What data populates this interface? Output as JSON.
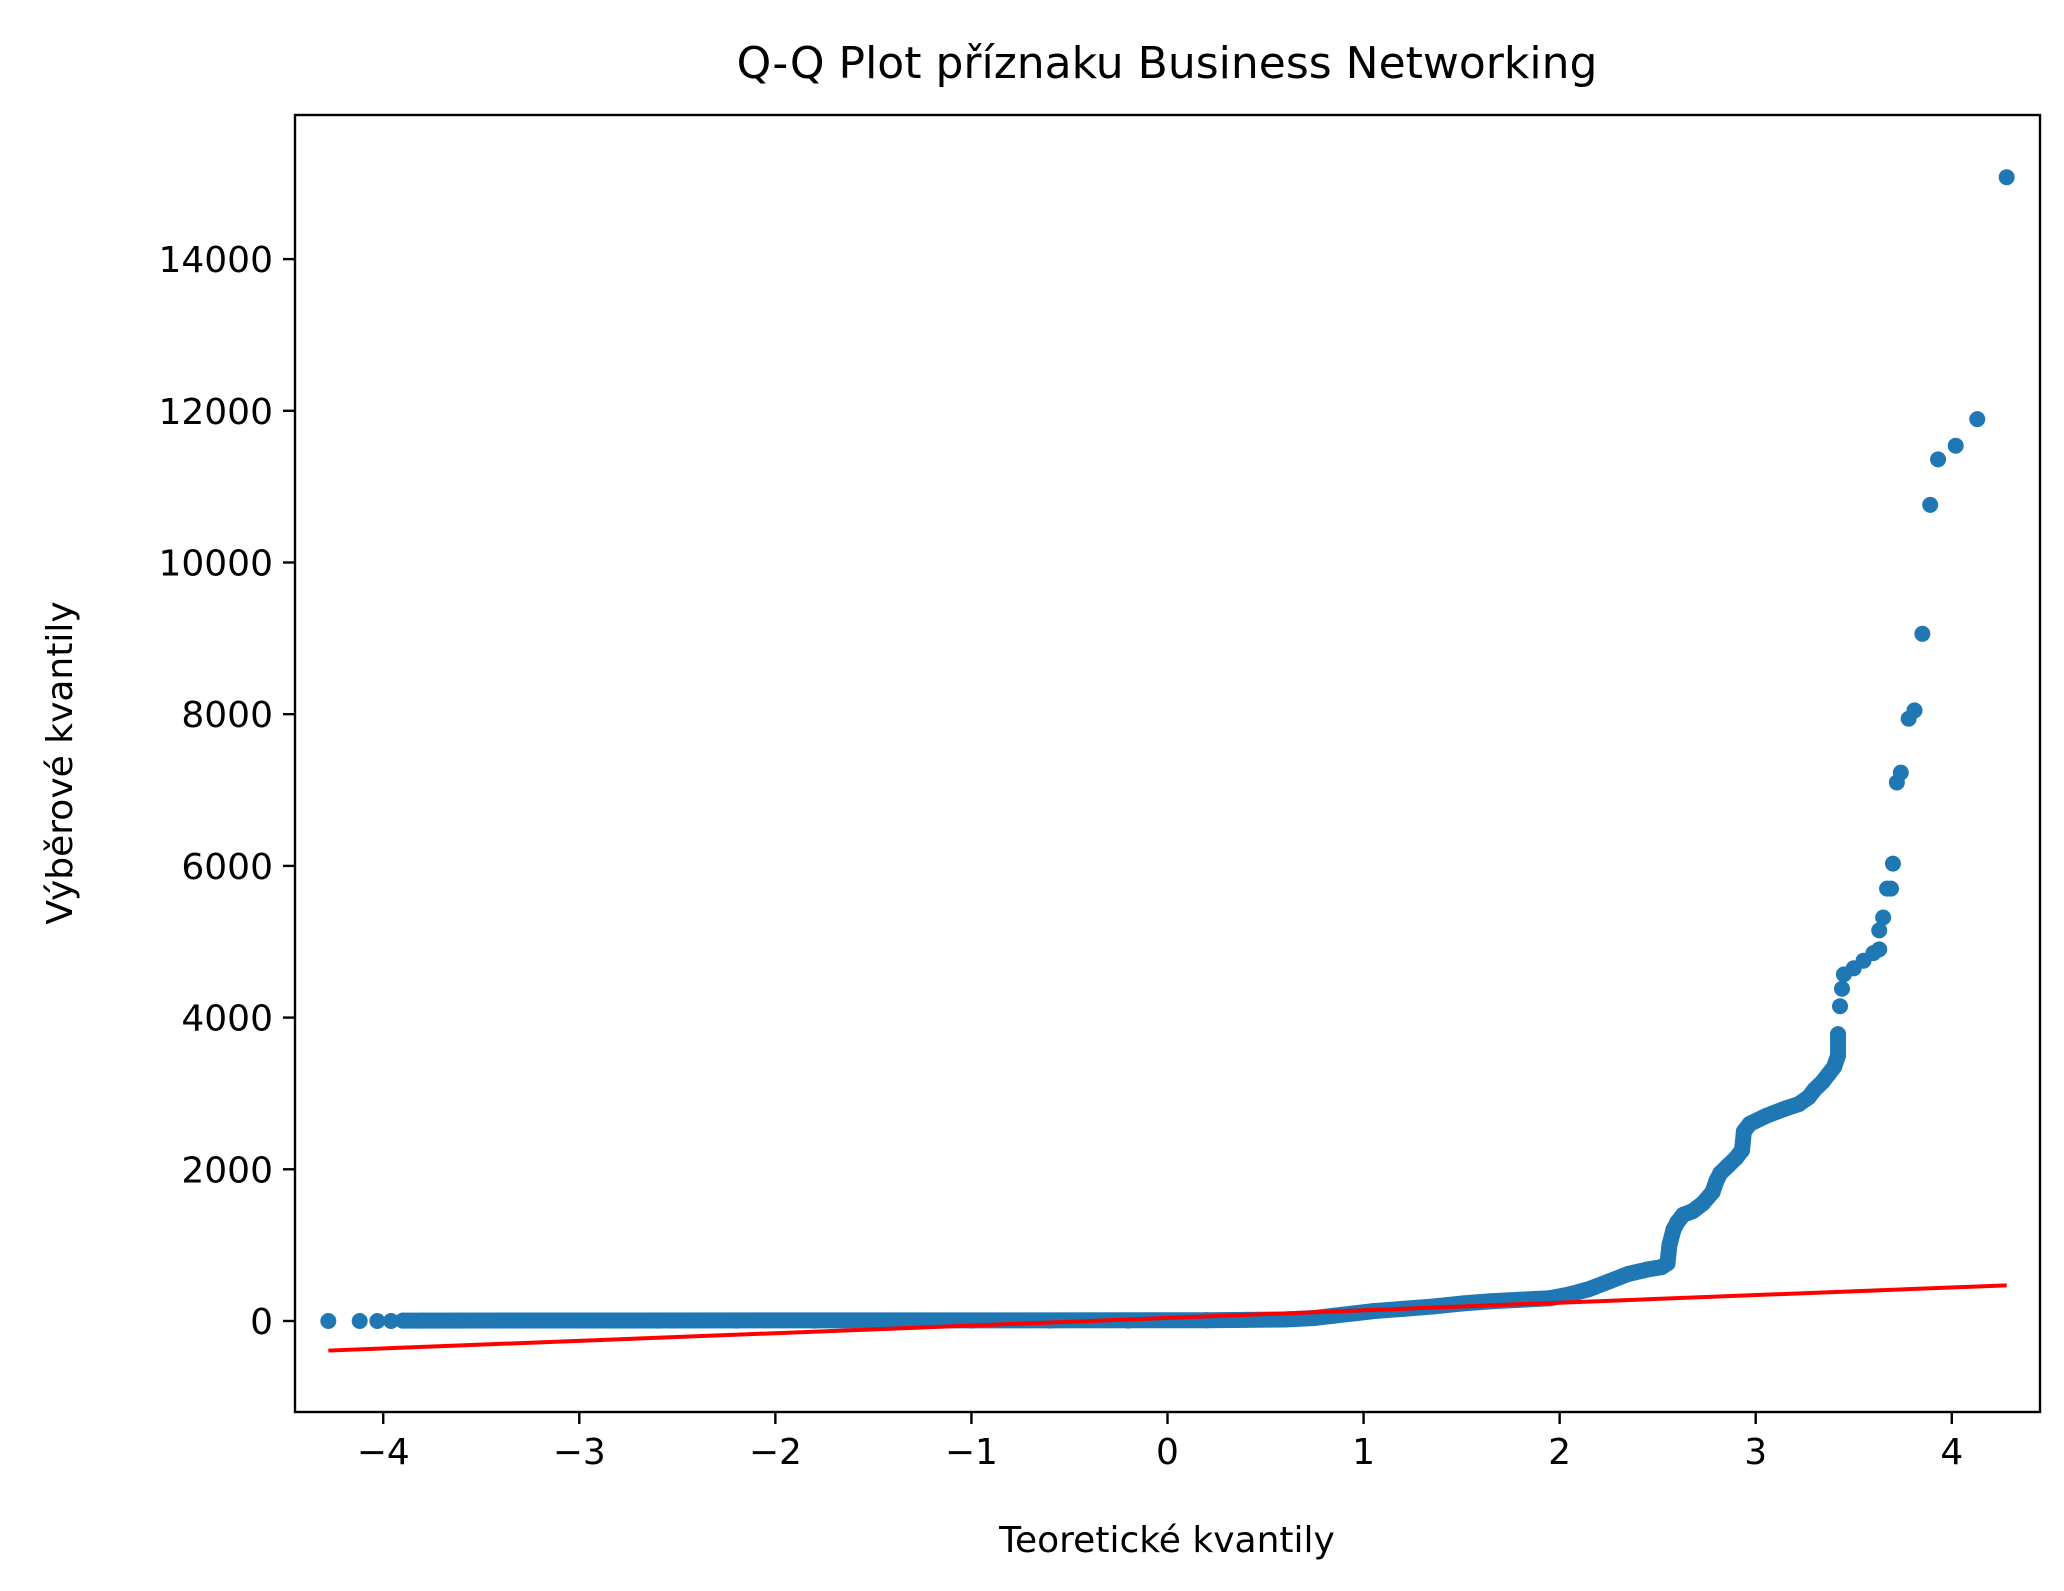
{
  "chart_data": {
    "type": "scatter",
    "title": "Q-Q Plot příznaku Business Networking",
    "xlabel": "Teoretické kvantily",
    "ylabel": "Výběrové kvantily",
    "xlim": [
      -4.45,
      4.45
    ],
    "ylim": [
      -1200,
      15900
    ],
    "xticks": [
      -4,
      -3,
      -2,
      -1,
      0,
      1,
      2,
      3,
      4
    ],
    "xtick_labels": [
      "−4",
      "−3",
      "−2",
      "−1",
      "0",
      "1",
      "2",
      "3",
      "4"
    ],
    "yticks": [
      0,
      2000,
      4000,
      6000,
      8000,
      10000,
      12000,
      14000
    ],
    "ytick_labels": [
      "0",
      "2000",
      "4000",
      "6000",
      "8000",
      "10000",
      "12000",
      "14000"
    ],
    "grid": false,
    "series": [
      {
        "kind": "points",
        "color": "#1f77b4",
        "points": [
          [
            -4.28,
            0
          ],
          [
            -4.12,
            0
          ],
          [
            -4.03,
            0
          ],
          [
            -3.96,
            0
          ],
          [
            -3.9,
            5
          ],
          [
            -3.8,
            5
          ],
          [
            -3.6,
            5
          ],
          [
            -3.3,
            5
          ],
          [
            -3.0,
            5
          ],
          [
            -2.6,
            5
          ],
          [
            -2.2,
            5
          ],
          [
            -1.8,
            5
          ],
          [
            -1.4,
            5
          ],
          [
            -1.0,
            5
          ],
          [
            -0.6,
            5
          ],
          [
            -0.2,
            5
          ],
          [
            0.2,
            10
          ],
          [
            0.4,
            15
          ],
          [
            0.6,
            20
          ],
          [
            0.75,
            40
          ],
          [
            0.85,
            70
          ],
          [
            0.95,
            100
          ],
          [
            1.05,
            130
          ],
          [
            1.2,
            160
          ],
          [
            1.35,
            190
          ],
          [
            1.5,
            230
          ],
          [
            1.65,
            260
          ],
          [
            1.8,
            280
          ],
          [
            1.95,
            300
          ],
          [
            2.05,
            350
          ],
          [
            2.15,
            420
          ],
          [
            2.25,
            520
          ],
          [
            2.35,
            620
          ],
          [
            2.45,
            680
          ],
          [
            2.52,
            710
          ],
          [
            2.55,
            760
          ],
          [
            2.56,
            1000
          ],
          [
            2.58,
            1200
          ],
          [
            2.6,
            1300
          ],
          [
            2.63,
            1400
          ],
          [
            2.68,
            1450
          ],
          [
            2.73,
            1550
          ],
          [
            2.78,
            1700
          ],
          [
            2.8,
            1850
          ],
          [
            2.82,
            1950
          ],
          [
            2.86,
            2050
          ],
          [
            2.9,
            2150
          ],
          [
            2.93,
            2250
          ],
          [
            2.94,
            2500
          ],
          [
            2.97,
            2600
          ],
          [
            3.05,
            2700
          ],
          [
            3.15,
            2800
          ],
          [
            3.22,
            2860
          ],
          [
            3.27,
            2950
          ],
          [
            3.3,
            3050
          ],
          [
            3.34,
            3150
          ],
          [
            3.37,
            3250
          ],
          [
            3.4,
            3350
          ],
          [
            3.42,
            3500
          ],
          [
            3.42,
            3780
          ],
          [
            3.43,
            4150
          ],
          [
            3.44,
            4380
          ],
          [
            3.45,
            4570
          ],
          [
            3.5,
            4650
          ],
          [
            3.55,
            4750
          ],
          [
            3.6,
            4850
          ],
          [
            3.63,
            4900
          ],
          [
            3.63,
            5150
          ],
          [
            3.65,
            5320
          ],
          [
            3.67,
            5700
          ],
          [
            3.69,
            5700
          ],
          [
            3.7,
            6030
          ],
          [
            3.72,
            7100
          ],
          [
            3.74,
            7230
          ],
          [
            3.78,
            7940
          ],
          [
            3.81,
            8050
          ],
          [
            3.85,
            9060
          ],
          [
            3.89,
            10760
          ],
          [
            3.93,
            11360
          ],
          [
            4.02,
            11540
          ],
          [
            4.13,
            11890
          ],
          [
            4.28,
            15080
          ]
        ]
      },
      {
        "kind": "fit-line",
        "color": "#ff0000",
        "x": [
          -4.28,
          4.28
        ],
        "y": [
          -390,
          470
        ]
      }
    ]
  }
}
